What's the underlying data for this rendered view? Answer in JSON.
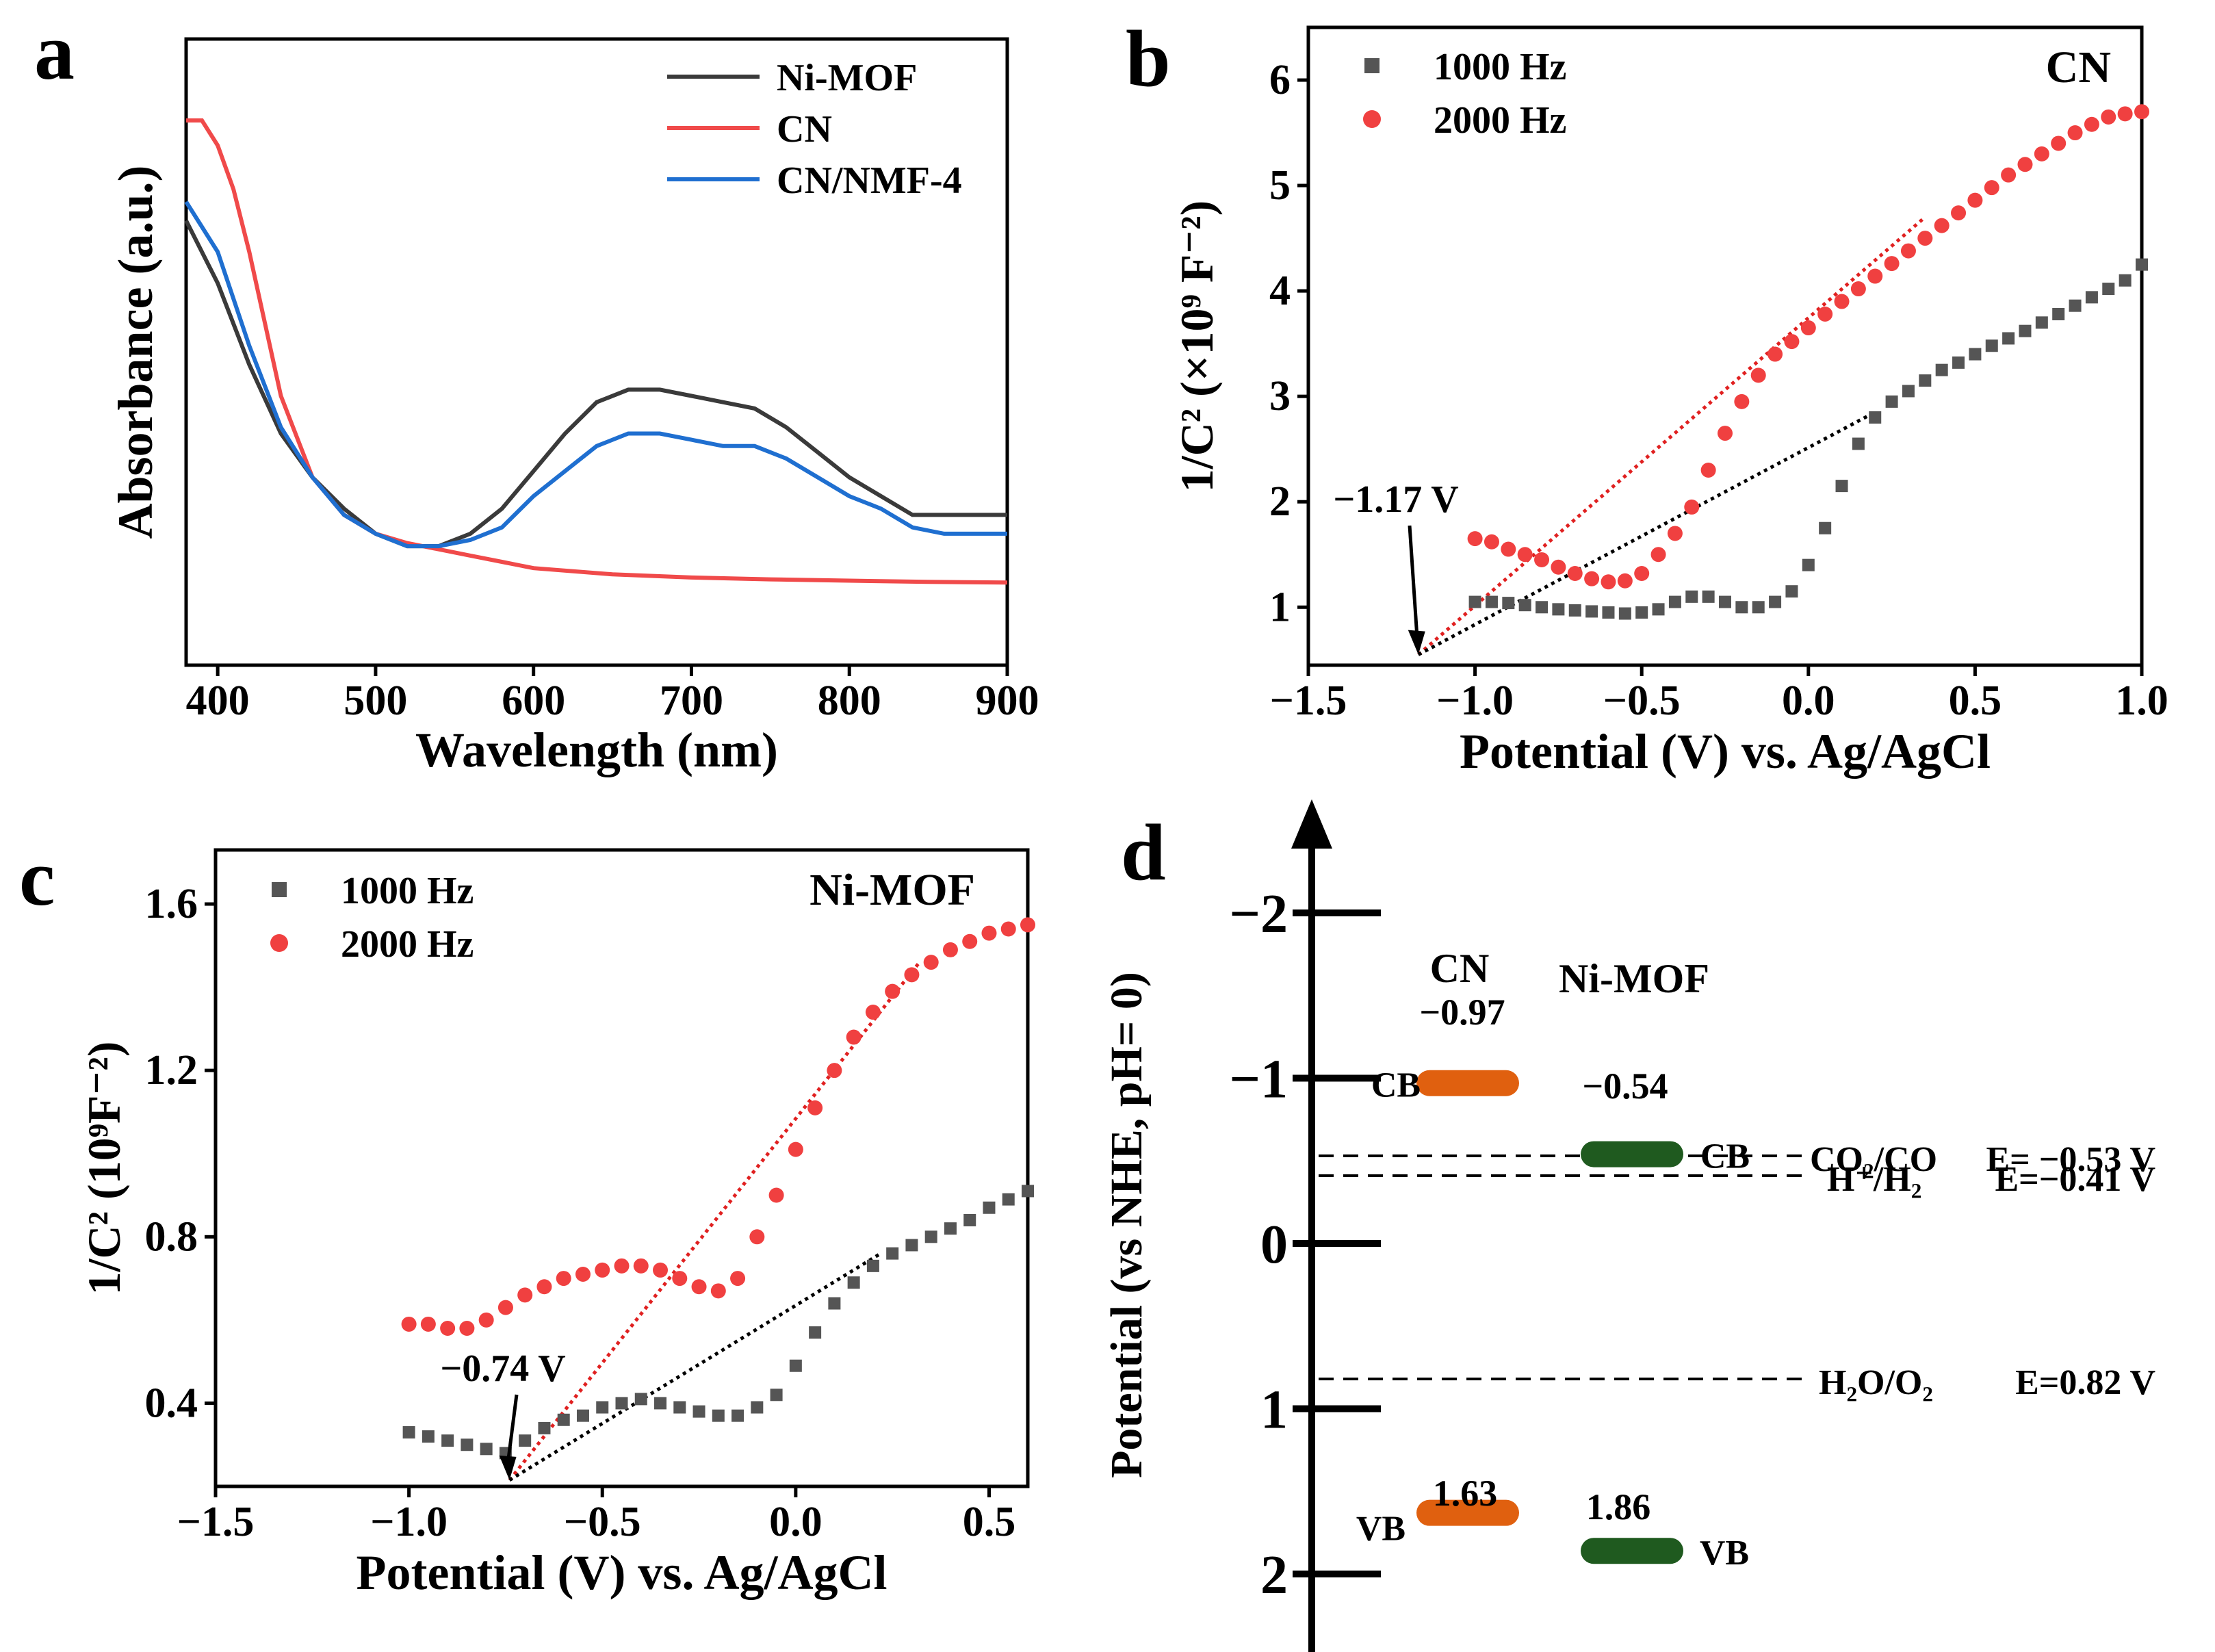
{
  "chart_data": [
    {
      "panel": "a",
      "type": "line",
      "xlabel": "Wavelength (nm)",
      "ylabel": "Absorbance (a.u.)",
      "xlim": [
        380,
        900
      ],
      "ylim": [
        0,
        1
      ],
      "xticks": [
        "400",
        "500",
        "600",
        "700",
        "800",
        "900"
      ],
      "xtick_values": [
        400,
        500,
        600,
        700,
        800,
        900
      ],
      "legend_position": "top-right",
      "series": [
        {
          "name": "Ni-MOF",
          "color": "#3a3a3a",
          "x": [
            380,
            400,
            420,
            440,
            460,
            480,
            500,
            520,
            540,
            560,
            580,
            600,
            620,
            640,
            660,
            680,
            700,
            720,
            740,
            760,
            780,
            800,
            820,
            840,
            860,
            880,
            900
          ],
          "y": [
            0.71,
            0.61,
            0.48,
            0.37,
            0.3,
            0.25,
            0.21,
            0.19,
            0.19,
            0.21,
            0.25,
            0.31,
            0.37,
            0.42,
            0.44,
            0.44,
            0.43,
            0.42,
            0.41,
            0.38,
            0.34,
            0.3,
            0.27,
            0.24,
            0.24,
            0.24,
            0.24
          ]
        },
        {
          "name": "CN",
          "color": "#f04a4a",
          "x": [
            380,
            390,
            400,
            410,
            420,
            440,
            460,
            480,
            500,
            520,
            540,
            560,
            580,
            600,
            650,
            700,
            750,
            800,
            850,
            900
          ],
          "y": [
            0.87,
            0.87,
            0.83,
            0.76,
            0.66,
            0.43,
            0.3,
            0.24,
            0.21,
            0.195,
            0.185,
            0.175,
            0.165,
            0.155,
            0.145,
            0.14,
            0.137,
            0.135,
            0.133,
            0.132
          ]
        },
        {
          "name": "CN/NMF-4",
          "color": "#1f6fd0",
          "x": [
            380,
            400,
            420,
            440,
            460,
            480,
            500,
            520,
            540,
            560,
            580,
            600,
            620,
            640,
            660,
            680,
            700,
            720,
            740,
            760,
            780,
            800,
            820,
            840,
            860,
            880,
            900
          ],
          "y": [
            0.74,
            0.66,
            0.51,
            0.38,
            0.3,
            0.24,
            0.21,
            0.19,
            0.19,
            0.2,
            0.22,
            0.27,
            0.31,
            0.35,
            0.37,
            0.37,
            0.36,
            0.35,
            0.35,
            0.33,
            0.3,
            0.27,
            0.25,
            0.22,
            0.21,
            0.21,
            0.21
          ]
        }
      ]
    },
    {
      "panel": "b",
      "type": "scatter",
      "annotation_title": "CN",
      "xlabel": "Potential (V) vs. Ag/AgCl",
      "ylabel": "1/C² (×10⁹ F⁻²)",
      "xlim": [
        -1.5,
        1.0
      ],
      "ylim": [
        0.45,
        6.5
      ],
      "xticks": [
        "−1.5",
        "−1.0",
        "−0.5",
        "0.0",
        "0.5",
        "1.0"
      ],
      "xtick_values": [
        -1.5,
        -1.0,
        -0.5,
        0.0,
        0.5,
        1.0
      ],
      "yticks": [
        "1",
        "2",
        "3",
        "4",
        "5",
        "6"
      ],
      "ytick_values": [
        1,
        2,
        3,
        4,
        5,
        6
      ],
      "legend_position": "top-left",
      "annotation": {
        "text": "−1.17 V",
        "x": -1.17,
        "y": 0.55
      },
      "series": [
        {
          "name": "1000 Hz",
          "marker": "square",
          "color": "#555555",
          "x": [
            -1.0,
            -0.95,
            -0.9,
            -0.85,
            -0.8,
            -0.75,
            -0.7,
            -0.65,
            -0.6,
            -0.55,
            -0.5,
            -0.45,
            -0.4,
            -0.35,
            -0.3,
            -0.25,
            -0.2,
            -0.15,
            -0.1,
            -0.05,
            0.0,
            0.05,
            0.1,
            0.15,
            0.2,
            0.25,
            0.3,
            0.35,
            0.4,
            0.45,
            0.5,
            0.55,
            0.6,
            0.65,
            0.7,
            0.75,
            0.8,
            0.85,
            0.9,
            0.95,
            1.0
          ],
          "y": [
            1.05,
            1.05,
            1.04,
            1.02,
            1.0,
            0.98,
            0.97,
            0.96,
            0.95,
            0.94,
            0.95,
            0.98,
            1.05,
            1.1,
            1.1,
            1.05,
            1.0,
            1.0,
            1.05,
            1.15,
            1.4,
            1.75,
            2.15,
            2.55,
            2.8,
            2.95,
            3.05,
            3.15,
            3.25,
            3.32,
            3.4,
            3.48,
            3.55,
            3.62,
            3.7,
            3.78,
            3.86,
            3.94,
            4.02,
            4.1,
            4.25
          ]
        },
        {
          "name": "2000 Hz",
          "marker": "circle",
          "color": "#f04040",
          "x": [
            -1.0,
            -0.95,
            -0.9,
            -0.85,
            -0.8,
            -0.75,
            -0.7,
            -0.65,
            -0.6,
            -0.55,
            -0.5,
            -0.45,
            -0.4,
            -0.35,
            -0.3,
            -0.25,
            -0.2,
            -0.15,
            -0.1,
            -0.05,
            0.0,
            0.05,
            0.1,
            0.15,
            0.2,
            0.25,
            0.3,
            0.35,
            0.4,
            0.45,
            0.5,
            0.55,
            0.6,
            0.65,
            0.7,
            0.75,
            0.8,
            0.85,
            0.9,
            0.95,
            1.0
          ],
          "y": [
            1.65,
            1.62,
            1.55,
            1.5,
            1.45,
            1.38,
            1.32,
            1.27,
            1.24,
            1.25,
            1.32,
            1.5,
            1.7,
            1.95,
            2.3,
            2.65,
            2.95,
            3.2,
            3.4,
            3.52,
            3.65,
            3.78,
            3.9,
            4.02,
            4.14,
            4.26,
            4.38,
            4.5,
            4.62,
            4.74,
            4.86,
            4.98,
            5.1,
            5.2,
            5.3,
            5.4,
            5.5,
            5.58,
            5.65,
            5.68,
            5.7
          ]
        }
      ],
      "fit_lines": [
        {
          "color": "#e02020",
          "x": [
            -1.17,
            0.35
          ],
          "y": [
            0.55,
            4.7
          ]
        },
        {
          "color": "#000000",
          "x": [
            -1.17,
            0.2
          ],
          "y": [
            0.55,
            2.85
          ]
        }
      ]
    },
    {
      "panel": "c",
      "type": "scatter",
      "annotation_title": "Ni-MOF",
      "xlabel": "Potential (V) vs. Ag/AgCl",
      "ylabel": "1/C² (10⁹F⁻²)",
      "xlim": [
        -1.5,
        0.6
      ],
      "ylim": [
        0.2,
        1.73
      ],
      "xticks": [
        "−1.5",
        "−1.0",
        "−0.5",
        "0.0",
        "0.5"
      ],
      "xtick_values": [
        -1.5,
        -1.0,
        -0.5,
        0.0,
        0.5
      ],
      "yticks": [
        "0.4",
        "0.8",
        "1.2",
        "1.6"
      ],
      "ytick_values": [
        0.4,
        0.8,
        1.2,
        1.6
      ],
      "legend_position": "top-left",
      "annotation": {
        "text": "−0.74 V",
        "x": -0.74,
        "y": 0.215
      },
      "series": [
        {
          "name": "1000 Hz",
          "marker": "square",
          "color": "#555555",
          "x": [
            -1.0,
            -0.95,
            -0.9,
            -0.85,
            -0.8,
            -0.75,
            -0.7,
            -0.65,
            -0.6,
            -0.55,
            -0.5,
            -0.45,
            -0.4,
            -0.35,
            -0.3,
            -0.25,
            -0.2,
            -0.15,
            -0.1,
            -0.05,
            0.0,
            0.05,
            0.1,
            0.15,
            0.2,
            0.25,
            0.3,
            0.35,
            0.4,
            0.45,
            0.5,
            0.55,
            0.6
          ],
          "y": [
            0.33,
            0.32,
            0.31,
            0.3,
            0.29,
            0.28,
            0.31,
            0.34,
            0.36,
            0.37,
            0.39,
            0.4,
            0.41,
            0.4,
            0.39,
            0.38,
            0.37,
            0.37,
            0.39,
            0.42,
            0.49,
            0.57,
            0.64,
            0.69,
            0.73,
            0.76,
            0.78,
            0.8,
            0.82,
            0.84,
            0.87,
            0.89,
            0.91
          ]
        },
        {
          "name": "2000 Hz",
          "marker": "circle",
          "color": "#f04040",
          "x": [
            -1.0,
            -0.95,
            -0.9,
            -0.85,
            -0.8,
            -0.75,
            -0.7,
            -0.65,
            -0.6,
            -0.55,
            -0.5,
            -0.45,
            -0.4,
            -0.35,
            -0.3,
            -0.25,
            -0.2,
            -0.15,
            -0.1,
            -0.05,
            0.0,
            0.05,
            0.1,
            0.15,
            0.2,
            0.25,
            0.3,
            0.35,
            0.4,
            0.45,
            0.5,
            0.55,
            0.6
          ],
          "y": [
            0.59,
            0.59,
            0.58,
            0.58,
            0.6,
            0.63,
            0.66,
            0.68,
            0.7,
            0.71,
            0.72,
            0.73,
            0.73,
            0.72,
            0.7,
            0.68,
            0.67,
            0.7,
            0.8,
            0.9,
            1.01,
            1.11,
            1.2,
            1.28,
            1.34,
            1.39,
            1.43,
            1.46,
            1.49,
            1.51,
            1.53,
            1.54,
            1.55
          ]
        }
      ],
      "fit_lines": [
        {
          "color": "#e02020",
          "x": [
            -0.74,
            0.32
          ],
          "y": [
            0.215,
            1.46
          ]
        },
        {
          "color": "#000000",
          "x": [
            -0.74,
            0.22
          ],
          "y": [
            0.215,
            0.76
          ]
        }
      ]
    },
    {
      "panel": "d",
      "type": "band-diagram",
      "ylabel": "Potential (vs NHE, pH= 0)",
      "ylim": [
        -2.6,
        2.4
      ],
      "yticks": [
        "−2",
        "−1",
        "0",
        "1",
        "2"
      ],
      "ytick_values": [
        -2,
        -1,
        0,
        1,
        2
      ],
      "materials": [
        {
          "name": "CN",
          "color": "#e0600f",
          "cb": -0.97,
          "vb": 1.63,
          "cb_value": "−0.97",
          "vb_value": "1.63",
          "cb_label": "CB",
          "vb_label": "VB"
        },
        {
          "name": "Ni-MOF",
          "color": "#1f5a1f",
          "cb": -0.54,
          "vb": 1.86,
          "cb_value": "−0.54",
          "vb_value": "1.86",
          "cb_label": "CB",
          "vb_label": "VB"
        }
      ],
      "reference_levels": [
        {
          "value": -0.53,
          "couple": "CO₂/CO",
          "energy": "E= −0.53 V"
        },
        {
          "value": -0.41,
          "couple": "H⁺/H₂",
          "energy": "E=−0.41 V"
        },
        {
          "value": 0.82,
          "couple": "H₂O/O₂",
          "energy": "E=0.82 V"
        }
      ]
    }
  ]
}
